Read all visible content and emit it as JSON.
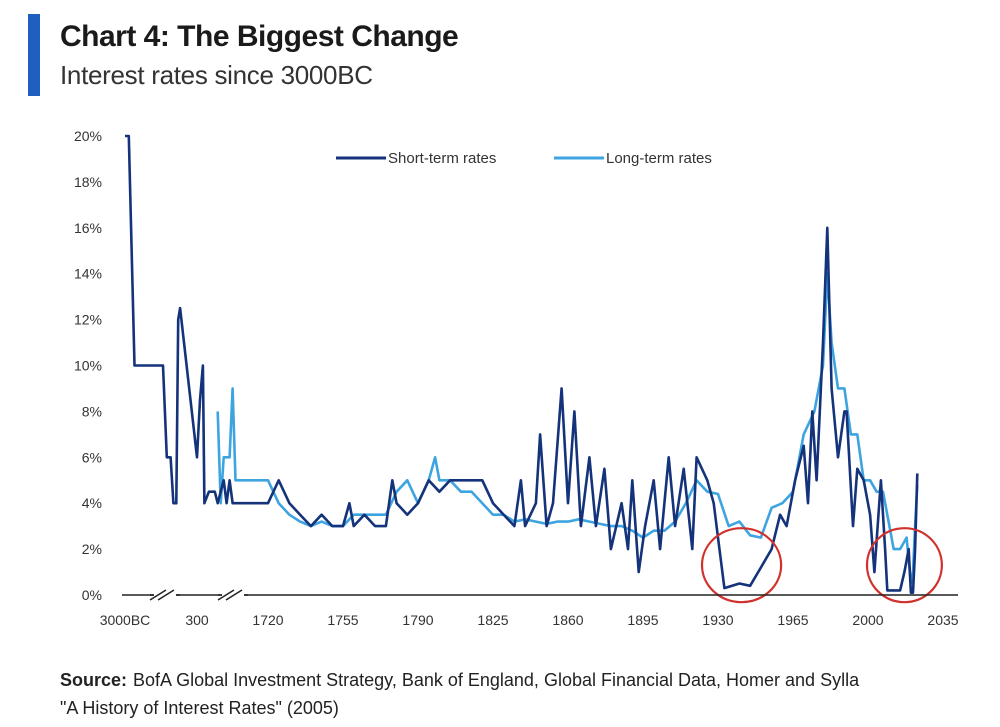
{
  "header": {
    "title": "Chart 4: The Biggest Change",
    "subtitle": "Interest rates since 3000BC"
  },
  "source": {
    "label": "Source:",
    "line1": "BofA Global Investment Strategy, Bank of England, Global Financial Data, Homer and Sylla",
    "line2": "\"A History of Interest Rates\" (2005)"
  },
  "colors": {
    "accent": "#1f5fbf",
    "short_term": "#14337a",
    "long_term": "#3ea4e0",
    "highlight_circle": "#d0312d",
    "axis": "#222222"
  },
  "chart_data": {
    "type": "line",
    "title": "Chart 4: The Biggest Change",
    "subtitle": "Interest rates since 3000BC",
    "x_tick_labels": [
      "3000BC",
      "300",
      "1720",
      "1755",
      "1790",
      "1825",
      "1860",
      "1895",
      "1930",
      "1965",
      "2000",
      "2035"
    ],
    "x_axis_breaks": [
      "between 3000BC and 300",
      "between 300 and 1720"
    ],
    "y_tick_labels": [
      "0%",
      "2%",
      "4%",
      "6%",
      "8%",
      "10%",
      "12%",
      "14%",
      "16%",
      "18%",
      "20%"
    ],
    "ylim": [
      0,
      20
    ],
    "y_unit": "%",
    "grid": false,
    "legend": {
      "position": "top-center",
      "entries": [
        "Short-term rates",
        "Long-term rates"
      ]
    },
    "annotations": [
      "circle around 1930s–1940s lows",
      "circle around 2009–2021 lows"
    ],
    "series": [
      {
        "name": "Short-term rates",
        "color": "#14337a",
        "points": [
          [
            "3000BC",
            20
          ],
          [
            "2800BC",
            20
          ],
          [
            "2500BC",
            10
          ],
          [
            "2000BC",
            10
          ],
          [
            "1500BC",
            10
          ],
          [
            "1000BC",
            10
          ],
          [
            "800BC",
            6
          ],
          [
            "600BC",
            6
          ],
          [
            "450BC",
            4
          ],
          [
            "300BC",
            4
          ],
          [
            "200BC",
            12
          ],
          [
            "100BC",
            12.5
          ],
          [
            "300",
            6
          ],
          [
            "400",
            8.5
          ],
          [
            "500",
            10
          ],
          [
            "550",
            4
          ],
          [
            "700",
            4.5
          ],
          [
            "900",
            4.5
          ],
          [
            "1000",
            4
          ],
          [
            "1200",
            5
          ],
          [
            "1300",
            4
          ],
          [
            "1400",
            5
          ],
          [
            "1500",
            4
          ],
          [
            "1600",
            4
          ],
          [
            "1720",
            4
          ],
          [
            "1725",
            5
          ],
          [
            "1730",
            4
          ],
          [
            "1735",
            3.5
          ],
          [
            "1740",
            3
          ],
          [
            "1745",
            3.5
          ],
          [
            "1750",
            3
          ],
          [
            "1755",
            3
          ],
          [
            "1758",
            4
          ],
          [
            "1760",
            3
          ],
          [
            "1765",
            3.5
          ],
          [
            "1770",
            3
          ],
          [
            "1775",
            3
          ],
          [
            "1778",
            5
          ],
          [
            "1780",
            4
          ],
          [
            "1785",
            3.5
          ],
          [
            "1790",
            4
          ],
          [
            "1795",
            5
          ],
          [
            "1800",
            4.5
          ],
          [
            "1805",
            5
          ],
          [
            "1810",
            5
          ],
          [
            "1815",
            5
          ],
          [
            "1820",
            5
          ],
          [
            "1825",
            4
          ],
          [
            "1830",
            3.5
          ],
          [
            "1835",
            3
          ],
          [
            "1838",
            5
          ],
          [
            "1840",
            3
          ],
          [
            "1845",
            4
          ],
          [
            "1847",
            7
          ],
          [
            "1850",
            3
          ],
          [
            "1853",
            4
          ],
          [
            "1857",
            9
          ],
          [
            "1860",
            4
          ],
          [
            "1863",
            8
          ],
          [
            "1866",
            3
          ],
          [
            "1870",
            6
          ],
          [
            "1873",
            3
          ],
          [
            "1877",
            5.5
          ],
          [
            "1880",
            2
          ],
          [
            "1885",
            4
          ],
          [
            "1888",
            2
          ],
          [
            "1890",
            5
          ],
          [
            "1893",
            1
          ],
          [
            "1896",
            3
          ],
          [
            "1900",
            5
          ],
          [
            "1903",
            2
          ],
          [
            "1907",
            6
          ],
          [
            "1910",
            3
          ],
          [
            "1914",
            5.5
          ],
          [
            "1918",
            2
          ],
          [
            "1920",
            6
          ],
          [
            "1925",
            5
          ],
          [
            "1928",
            4
          ],
          [
            "1930",
            2.5
          ],
          [
            "1933",
            0.3
          ],
          [
            "1940",
            0.5
          ],
          [
            "1945",
            0.4
          ],
          [
            "1950",
            1.2
          ],
          [
            "1955",
            2
          ],
          [
            "1959",
            3.5
          ],
          [
            "1962",
            3
          ],
          [
            "1966",
            5
          ],
          [
            "1970",
            6.5
          ],
          [
            "1972",
            4
          ],
          [
            "1974",
            8
          ],
          [
            "1976",
            5
          ],
          [
            "1979",
            11
          ],
          [
            "1981",
            16
          ],
          [
            "1983",
            9
          ],
          [
            "1986",
            6
          ],
          [
            "1989",
            8
          ],
          [
            "1990",
            8
          ],
          [
            "1993",
            3
          ],
          [
            "1995",
            5.5
          ],
          [
            "1998",
            5
          ],
          [
            "2001",
            3.5
          ],
          [
            "2003",
            1
          ],
          [
            "2006",
            5
          ],
          [
            "2008",
            2
          ],
          [
            "2009",
            0.2
          ],
          [
            "2015",
            0.2
          ],
          [
            "2017",
            1
          ],
          [
            "2019",
            2
          ],
          [
            "2020",
            0.1
          ],
          [
            "2021",
            0.1
          ],
          [
            "2022",
            2
          ],
          [
            "2023",
            5.3
          ]
        ]
      },
      {
        "name": "Long-term rates",
        "color": "#3ea4e0",
        "points": [
          [
            "1000",
            8
          ],
          [
            "1100",
            4
          ],
          [
            "1200",
            6
          ],
          [
            "1300",
            6
          ],
          [
            "1400",
            6
          ],
          [
            "1500",
            9
          ],
          [
            "1600",
            5
          ],
          [
            "1720",
            5
          ],
          [
            "1725",
            4
          ],
          [
            "1730",
            3.5
          ],
          [
            "1735",
            3.2
          ],
          [
            "1740",
            3
          ],
          [
            "1745",
            3.2
          ],
          [
            "1750",
            3
          ],
          [
            "1755",
            3
          ],
          [
            "1760",
            3.5
          ],
          [
            "1765",
            3.5
          ],
          [
            "1770",
            3.5
          ],
          [
            "1775",
            3.5
          ],
          [
            "1780",
            4.5
          ],
          [
            "1785",
            5
          ],
          [
            "1790",
            4
          ],
          [
            "1795",
            5
          ],
          [
            "1798",
            6
          ],
          [
            "1800",
            5
          ],
          [
            "1805",
            5
          ],
          [
            "1810",
            4.5
          ],
          [
            "1815",
            4.5
          ],
          [
            "1820",
            4
          ],
          [
            "1825",
            3.5
          ],
          [
            "1830",
            3.5
          ],
          [
            "1835",
            3.2
          ],
          [
            "1840",
            3.3
          ],
          [
            "1845",
            3.2
          ],
          [
            "1850",
            3.1
          ],
          [
            "1855",
            3.2
          ],
          [
            "1860",
            3.2
          ],
          [
            "1865",
            3.3
          ],
          [
            "1870",
            3.2
          ],
          [
            "1875",
            3.1
          ],
          [
            "1880",
            3
          ],
          [
            "1885",
            3
          ],
          [
            "1890",
            2.8
          ],
          [
            "1895",
            2.5
          ],
          [
            "1900",
            2.8
          ],
          [
            "1905",
            2.8
          ],
          [
            "1910",
            3.2
          ],
          [
            "1915",
            4
          ],
          [
            "1920",
            5
          ],
          [
            "1925",
            4.5
          ],
          [
            "1930",
            4.4
          ],
          [
            "1935",
            3
          ],
          [
            "1940",
            3.2
          ],
          [
            "1945",
            2.6
          ],
          [
            "1950",
            2.5
          ],
          [
            "1955",
            3.8
          ],
          [
            "1960",
            4
          ],
          [
            "1965",
            4.5
          ],
          [
            "1970",
            7
          ],
          [
            "1975",
            8
          ],
          [
            "1979",
            10
          ],
          [
            "1981",
            14
          ],
          [
            "1983",
            11
          ],
          [
            "1986",
            9
          ],
          [
            "1989",
            9
          ],
          [
            "1992",
            7
          ],
          [
            "1995",
            7
          ],
          [
            "1998",
            5
          ],
          [
            "2001",
            5
          ],
          [
            "2004",
            4.5
          ],
          [
            "2007",
            4.5
          ],
          [
            "2009",
            3.5
          ],
          [
            "2012",
            2
          ],
          [
            "2015",
            2
          ],
          [
            "2018",
            2.5
          ],
          [
            "2020",
            0.5
          ],
          [
            "2021",
            1
          ],
          [
            "2022",
            3
          ],
          [
            "2023",
            4.8
          ]
        ]
      }
    ]
  }
}
